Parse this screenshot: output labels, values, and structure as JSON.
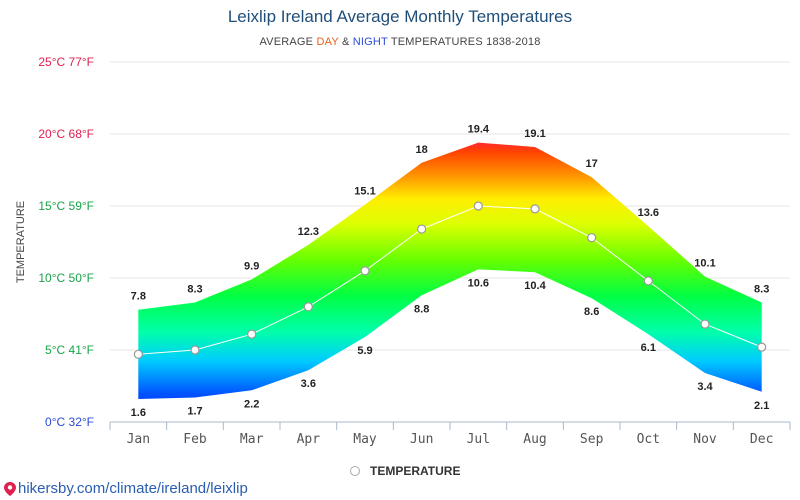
{
  "header": {
    "title": "Leixlip Ireland Average Monthly Temperatures",
    "subtitle_prefix": "AVERAGE ",
    "subtitle_day": "DAY",
    "subtitle_amp": " & ",
    "subtitle_night": "NIGHT",
    "subtitle_suffix": " TEMPERATURES 1838-2018"
  },
  "legend": {
    "label": "TEMPERATURE"
  },
  "footer": {
    "url": "hikersby.com/climate/ireland/leixlip",
    "icon": "map-pin-icon"
  },
  "colors": {
    "title": "#1f4e79",
    "day": "#e8601c",
    "night": "#2a4bd7",
    "link": "#2a5db0"
  },
  "chart_data": {
    "type": "area",
    "categories": [
      "Jan",
      "Feb",
      "Mar",
      "Apr",
      "May",
      "Jun",
      "Jul",
      "Aug",
      "Sep",
      "Oct",
      "Nov",
      "Dec"
    ],
    "day": [
      7.8,
      8.3,
      9.9,
      12.3,
      15.1,
      18,
      19.4,
      19.1,
      17,
      13.6,
      10.1,
      8.3
    ],
    "night": [
      1.6,
      1.7,
      2.2,
      3.6,
      5.9,
      8.8,
      10.6,
      10.4,
      8.6,
      6.1,
      3.4,
      2.1
    ],
    "average": [
      4.7,
      5.0,
      6.1,
      8.0,
      10.5,
      13.4,
      15.0,
      14.8,
      12.8,
      9.8,
      6.8,
      5.2
    ],
    "ylabel": "TEMPERATURE",
    "ylim": [
      0,
      25
    ],
    "ytick_labels": [
      {
        "value": 0,
        "label": "0°C 32°F",
        "color": "#2a4bd7"
      },
      {
        "value": 5,
        "label": "5°C 41°F",
        "color": "#19a34a"
      },
      {
        "value": 10,
        "label": "10°C 50°F",
        "color": "#19a34a"
      },
      {
        "value": 15,
        "label": "15°C 59°F",
        "color": "#19a34a"
      },
      {
        "value": 20,
        "label": "20°C 68°F",
        "color": "#e0204f"
      },
      {
        "value": 25,
        "label": "25°C 77°F",
        "color": "#e0204f"
      }
    ],
    "grid": true,
    "legend_position": "bottom"
  }
}
